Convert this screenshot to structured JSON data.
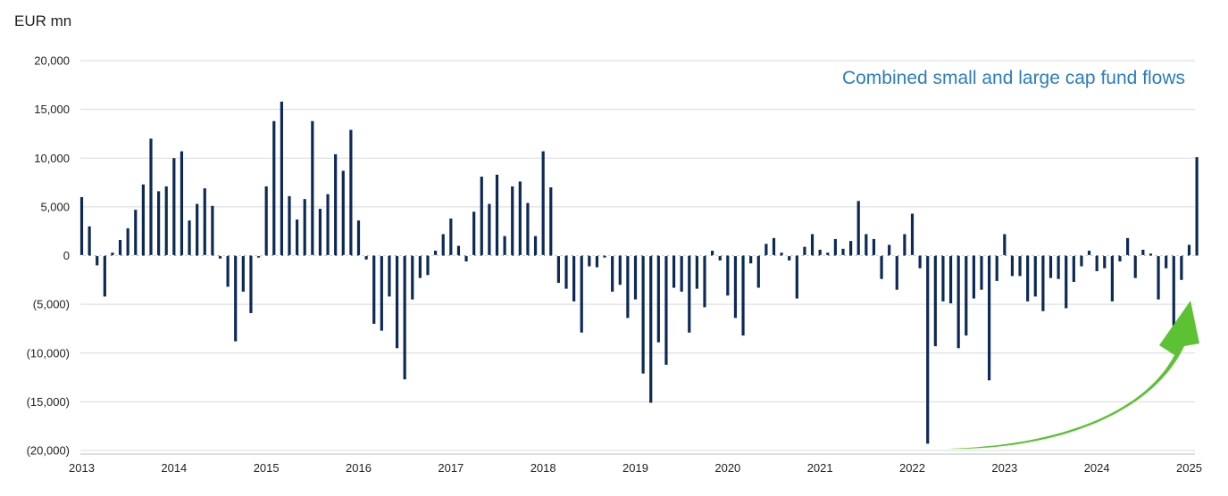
{
  "chart_data": {
    "type": "bar",
    "title": "Combined small and large cap fund flows",
    "ylabel": "EUR mn",
    "ylim": [
      -20000,
      20000
    ],
    "yticks": [
      {
        "value": 20000,
        "label": "20,000"
      },
      {
        "value": 15000,
        "label": "15,000"
      },
      {
        "value": 10000,
        "label": "10,000"
      },
      {
        "value": 5000,
        "label": "5,000"
      },
      {
        "value": 0,
        "label": "0"
      },
      {
        "value": -5000,
        "label": "(5,000)"
      },
      {
        "value": -10000,
        "label": "(10,000)"
      },
      {
        "value": -15000,
        "label": "(15,000)"
      },
      {
        "value": -20000,
        "label": "(20,000)"
      }
    ],
    "xticks": [
      "2013",
      "2014",
      "2015",
      "2016",
      "2017",
      "2018",
      "2019",
      "2020",
      "2021",
      "2022",
      "2023",
      "2024",
      "2025"
    ],
    "grid": true,
    "bar_color": "#0d2a57",
    "title_color": "#2a7dbf",
    "arrow_color": "#5cc234",
    "annotation": "green upward arrow at recent months",
    "months_start": "2013-01",
    "values": [
      6000,
      3000,
      -1000,
      -4200,
      300,
      1600,
      2800,
      4700,
      7300,
      12000,
      6600,
      7100,
      10000,
      10700,
      3600,
      5300,
      6900,
      5100,
      -300,
      -3200,
      -8800,
      -3700,
      -5900,
      -200,
      7100,
      13800,
      15800,
      6100,
      3700,
      5800,
      13800,
      4800,
      6300,
      10400,
      8700,
      12900,
      3600,
      -400,
      -7000,
      -7700,
      -4200,
      -9500,
      -12700,
      -4500,
      -2300,
      -2000,
      500,
      2200,
      3800,
      1000,
      -600,
      4500,
      8100,
      5300,
      8300,
      2000,
      7100,
      7600,
      5400,
      2000,
      10700,
      7000,
      -2800,
      -3400,
      -4700,
      -7900,
      -1100,
      -1200,
      -200,
      -3700,
      -3000,
      -6400,
      -4500,
      -12100,
      -15100,
      -8900,
      -11200,
      -3300,
      -3700,
      -7900,
      -3400,
      -5300,
      500,
      -500,
      -4100,
      -6400,
      -8200,
      -800,
      -3300,
      1200,
      1800,
      300,
      -500,
      -4400,
      900,
      2200,
      600,
      300,
      1700,
      700,
      1500,
      5600,
      2200,
      1700,
      -2400,
      1100,
      -3500,
      2200,
      4300,
      -1300,
      -19300,
      -9300,
      -4700,
      -4900,
      -9500,
      -8200,
      -4400,
      -3500,
      -12800,
      -2600,
      2200,
      -2100,
      -2100,
      -4700,
      -4200,
      -5700,
      -2300,
      -2400,
      -5400,
      -2700,
      -1100,
      500,
      -1600,
      -1300,
      -4700,
      -600,
      1800,
      -2300,
      600,
      200,
      -4500,
      -1300,
      -7200,
      -2500,
      1100,
      10100
    ]
  }
}
